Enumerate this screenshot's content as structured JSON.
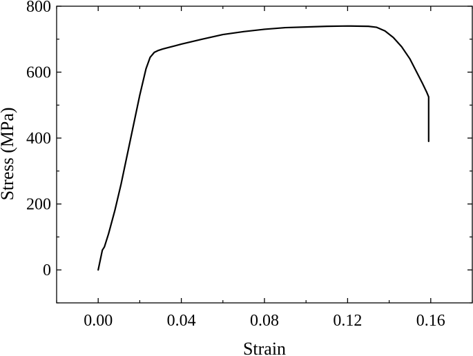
{
  "chart_data": {
    "type": "line",
    "title": "",
    "xlabel": "Strain",
    "ylabel": "Stress (MPa)",
    "xlim": [
      -0.02,
      0.18
    ],
    "ylim": [
      -100,
      800
    ],
    "xticks": [
      0.0,
      0.04,
      0.08,
      0.12,
      0.16
    ],
    "xtick_labels": [
      "0.00",
      "0.04",
      "0.08",
      "0.12",
      "0.16"
    ],
    "yticks": [
      0,
      200,
      400,
      600,
      800
    ],
    "ytick_labels": [
      "0",
      "200",
      "400",
      "600",
      "800"
    ],
    "grid": false,
    "legend": "none",
    "series": [
      {
        "color": "#000000",
        "x": [
          0.0,
          0.001,
          0.002,
          0.003,
          0.005,
          0.008,
          0.011,
          0.014,
          0.017,
          0.02,
          0.023,
          0.025,
          0.027,
          0.029,
          0.031,
          0.034,
          0.04,
          0.05,
          0.06,
          0.07,
          0.08,
          0.09,
          0.1,
          0.11,
          0.12,
          0.13,
          0.134,
          0.138,
          0.142,
          0.146,
          0.15,
          0.153,
          0.156,
          0.158,
          0.159,
          0.159,
          0.159
        ],
        "y": [
          0,
          30,
          60,
          70,
          110,
          180,
          260,
          350,
          440,
          530,
          610,
          645,
          660,
          666,
          670,
          675,
          685,
          700,
          714,
          723,
          730,
          735,
          737,
          739,
          740,
          739,
          736,
          725,
          705,
          677,
          640,
          603,
          566,
          540,
          525,
          450,
          390
        ]
      }
    ]
  }
}
